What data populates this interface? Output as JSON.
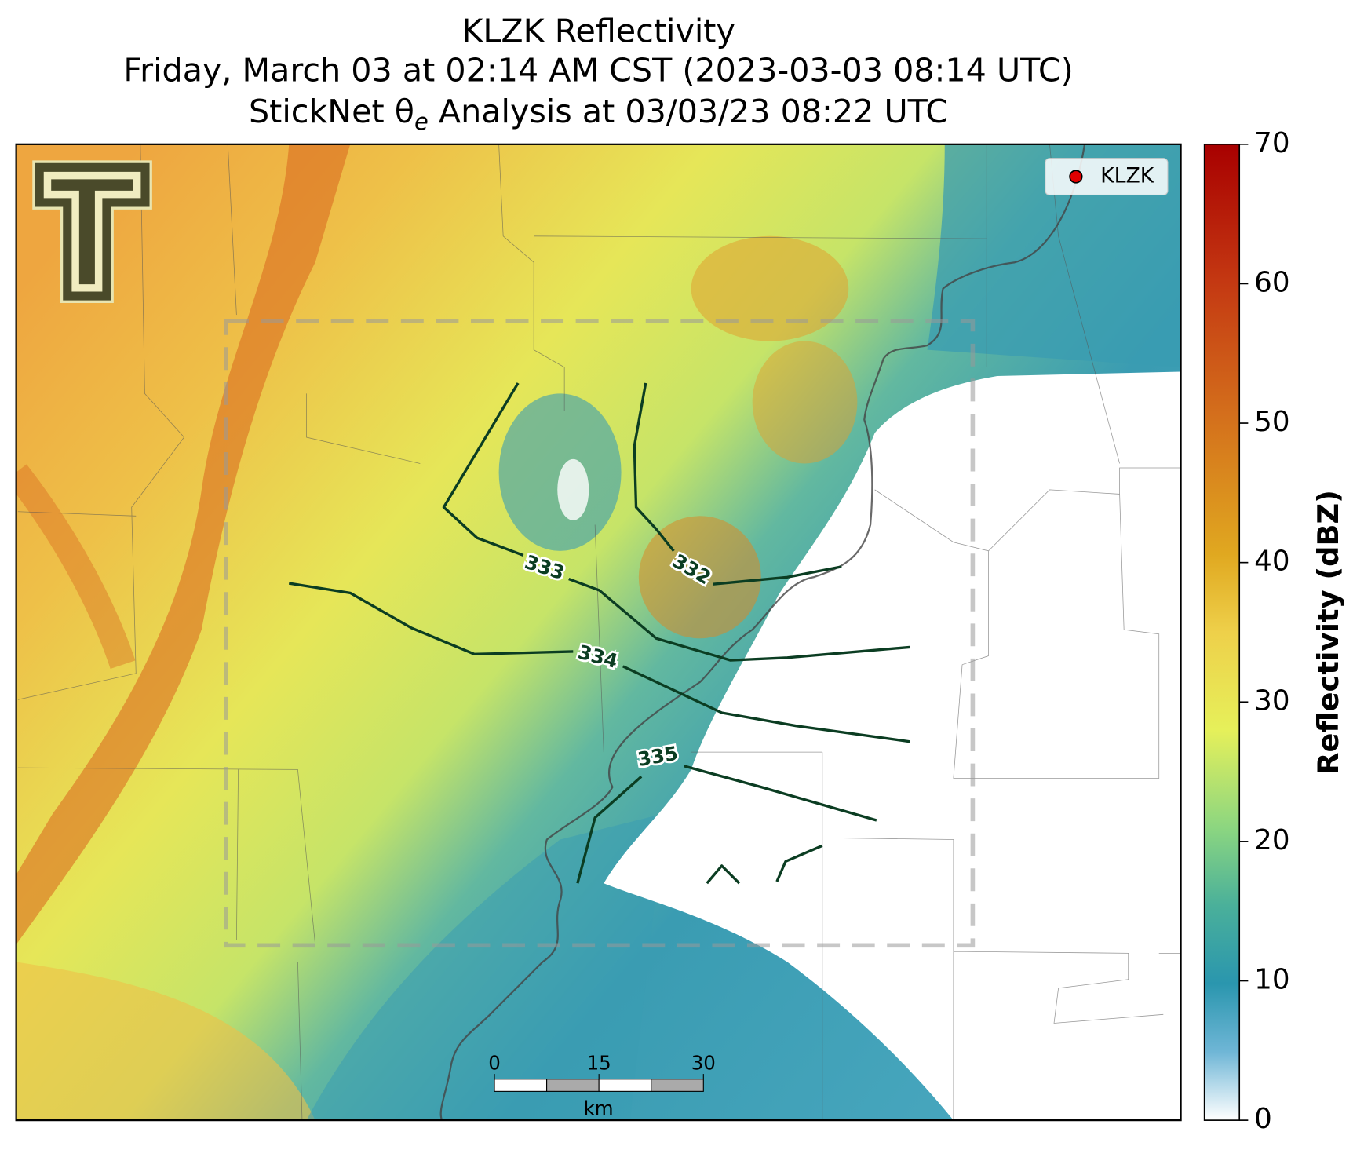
{
  "title": {
    "radar": "KLZK Reflectivity",
    "time": "Friday, March 03 at 02:14 AM CST (2023-03-03 08:14 UTC)",
    "analysis": {
      "before": "StickNet θ",
      "subscript": "e",
      "after": " Analysis at 03/03/23 08:22 UTC"
    }
  },
  "legend": {
    "label": "KLZK"
  },
  "contours": [
    {
      "label": 332
    },
    {
      "label": 333
    },
    {
      "label": 334
    },
    {
      "label": 335
    }
  ],
  "colorbar": {
    "label": "Reflectivity (dBZ)",
    "range": [
      0,
      70
    ],
    "ticks": [
      0,
      10,
      20,
      30,
      40,
      50,
      60,
      70
    ]
  },
  "scale_bar": {
    "range": [
      0,
      30
    ],
    "ticks": [
      0,
      15,
      30
    ],
    "unit": "km"
  }
}
